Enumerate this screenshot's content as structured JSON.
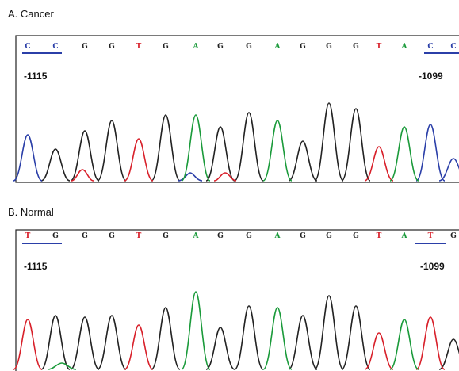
{
  "panels": [
    {
      "label": "A. Cancer",
      "position_start": "-1115",
      "position_end": "-1099",
      "bases": [
        {
          "base": "C",
          "color": "#2b3fa8"
        },
        {
          "base": "C",
          "color": "#2b3fa8"
        },
        {
          "base": "G",
          "color": "#222"
        },
        {
          "base": "G",
          "color": "#222"
        },
        {
          "base": "T",
          "color": "#d8202a"
        },
        {
          "base": "G",
          "color": "#222"
        },
        {
          "base": "A",
          "color": "#1a9a3a"
        },
        {
          "base": "G",
          "color": "#222"
        },
        {
          "base": "G",
          "color": "#222"
        },
        {
          "base": "A",
          "color": "#1a9a3a"
        },
        {
          "base": "G",
          "color": "#222"
        },
        {
          "base": "G",
          "color": "#222"
        },
        {
          "base": "G",
          "color": "#222"
        },
        {
          "base": "T",
          "color": "#d8202a"
        },
        {
          "base": "A",
          "color": "#1a9a3a"
        },
        {
          "base": "C",
          "color": "#2b3fa8"
        },
        {
          "base": "C",
          "color": "#2b3fa8"
        }
      ]
    },
    {
      "label": "B. Normal",
      "position_start": "-1115",
      "position_end": "-1099",
      "bases": [
        {
          "base": "T",
          "color": "#d8202a"
        },
        {
          "base": "G",
          "color": "#222"
        },
        {
          "base": "G",
          "color": "#222"
        },
        {
          "base": "G",
          "color": "#222"
        },
        {
          "base": "T",
          "color": "#d8202a"
        },
        {
          "base": "G",
          "color": "#222"
        },
        {
          "base": "A",
          "color": "#1a9a3a"
        },
        {
          "base": "G",
          "color": "#222"
        },
        {
          "base": "G",
          "color": "#222"
        },
        {
          "base": "A",
          "color": "#1a9a3a"
        },
        {
          "base": "G",
          "color": "#222"
        },
        {
          "base": "G",
          "color": "#222"
        },
        {
          "base": "G",
          "color": "#222"
        },
        {
          "base": "T",
          "color": "#d8202a"
        },
        {
          "base": "A",
          "color": "#1a9a3a"
        },
        {
          "base": "T",
          "color": "#d8202a"
        },
        {
          "base": "G",
          "color": "#222"
        }
      ]
    }
  ]
}
